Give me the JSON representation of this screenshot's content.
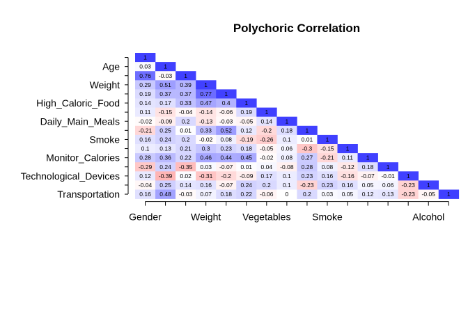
{
  "chart_data": {
    "type": "heatmap",
    "title": "Polychoric Correlation",
    "xlabel": "",
    "ylabel": "",
    "y_tick_labels": [
      {
        "label": "Age",
        "row": 1
      },
      {
        "label": "Weight",
        "row": 3
      },
      {
        "label": "High_Caloric_Food",
        "row": 5
      },
      {
        "label": "Daily_Main_Meals",
        "row": 7
      },
      {
        "label": "Smoke",
        "row": 9
      },
      {
        "label": "Monitor_Calories",
        "row": 11
      },
      {
        "label": "Technological_Devices",
        "row": 13
      },
      {
        "label": "Transportation",
        "row": 15
      }
    ],
    "x_tick_labels": [
      {
        "label": "Gender",
        "col": 0
      },
      {
        "label": "Weight",
        "col": 3
      },
      {
        "label": "Vegetables",
        "col": 6
      },
      {
        "label": "Smoke",
        "col": 9
      },
      {
        "label": "Alcohol",
        "col": 14
      }
    ],
    "n": 16,
    "matrix": [
      [
        1
      ],
      [
        0.03,
        1
      ],
      [
        0.76,
        -0.03,
        1
      ],
      [
        0.29,
        0.51,
        0.39,
        1
      ],
      [
        0.19,
        0.37,
        0.37,
        0.77,
        1
      ],
      [
        0.14,
        0.17,
        0.33,
        0.47,
        0.4,
        1
      ],
      [
        0.11,
        -0.15,
        -0.04,
        -0.14,
        -0.06,
        0.19,
        1
      ],
      [
        -0.02,
        -0.09,
        0.2,
        -0.13,
        -0.03,
        -0.05,
        0.14,
        1
      ],
      [
        -0.21,
        0.25,
        0.01,
        0.33,
        0.52,
        0.12,
        -0.2,
        0.18,
        1
      ],
      [
        0.16,
        0.24,
        0.2,
        -0.02,
        0.08,
        -0.19,
        -0.26,
        0.1,
        0.01,
        1
      ],
      [
        0.1,
        0.13,
        0.21,
        0.3,
        0.23,
        0.18,
        -0.05,
        0.06,
        -0.3,
        -0.15,
        1
      ],
      [
        0.28,
        0.36,
        0.22,
        0.46,
        0.44,
        0.45,
        -0.02,
        0.08,
        0.27,
        -0.21,
        0.11,
        1
      ],
      [
        -0.29,
        0.24,
        -0.35,
        0.03,
        -0.07,
        0.01,
        0.04,
        -0.08,
        0.28,
        0.08,
        -0.12,
        0.18,
        1
      ],
      [
        0.12,
        -0.39,
        0.02,
        -0.31,
        -0.2,
        -0.09,
        0.17,
        0.1,
        0.23,
        0.16,
        -0.16,
        -0.07,
        -0.01,
        1
      ],
      [
        -0.04,
        0.25,
        0.14,
        0.16,
        -0.07,
        0.24,
        0.2,
        0.1,
        -0.23,
        0.23,
        0.16,
        0.05,
        0.06,
        -0.23,
        1
      ],
      [
        0.16,
        0.48,
        -0.03,
        0.07,
        0.18,
        0.22,
        -0.06,
        0,
        0.2,
        0.03,
        0.05,
        0.12,
        0.13,
        -0.23,
        -0.05,
        1
      ]
    ],
    "color_scale": {
      "positive": "#4040ff",
      "neutral": "#ffffff",
      "negative": "#ff4040"
    },
    "grid": false
  }
}
